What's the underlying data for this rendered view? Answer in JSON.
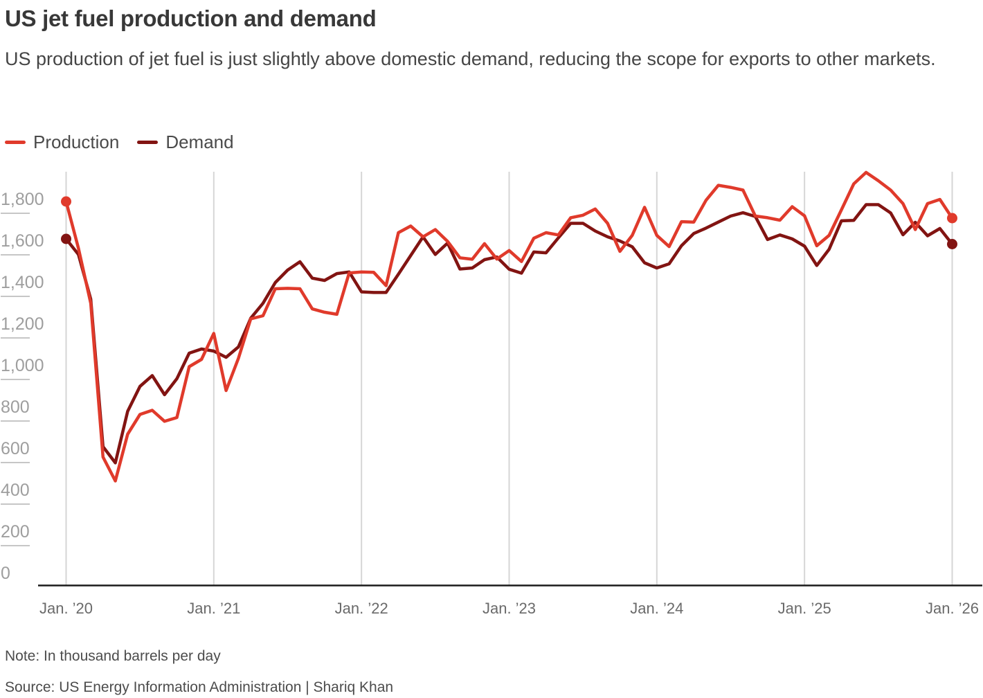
{
  "header": {
    "title": "US jet fuel production and demand",
    "subtitle": "US production of jet fuel is just slightly above domestic demand, reducing the scope for exports to other markets."
  },
  "footer": {
    "note": "Note: In thousand barrels per day",
    "source": "Source: US Energy Information Administration | Shariq Khan"
  },
  "colors": {
    "production": "#e03a2b",
    "demand": "#821412",
    "gridline": "#d6d6d6",
    "tick_dash": "#c6c6c6",
    "axis_line": "#1a1a1a",
    "y_label": "#9e9e9e",
    "x_label": "#6a6a6a"
  },
  "chart_data": {
    "type": "line",
    "title": "US jet fuel production and demand",
    "xlabel": "",
    "ylabel": "",
    "unit": "thousand barrels per day",
    "x_start": "Jan 2020",
    "x_end": "Jan 2026",
    "x_frequency": "monthly",
    "grid": "vertical-only",
    "legend_position": "top-left",
    "ylim": [
      -60,
      1935
    ],
    "x_tick_labels": [
      "Jan. ’20",
      "Jan. ’21",
      "Jan. ’22",
      "Jan. ’23",
      "Jan. ’24",
      "Jan. ’25",
      "Jan. ’26"
    ],
    "x_tick_month_indices": [
      0,
      12,
      24,
      36,
      48,
      60,
      72
    ],
    "y_ticks": [
      0,
      200,
      400,
      600,
      800,
      1000,
      1200,
      1400,
      1600,
      1800
    ],
    "y_tick_labels": [
      "0",
      "200",
      "400",
      "600",
      "800",
      "1,000",
      "1,200",
      "1,400",
      "1,600",
      "1,800"
    ],
    "series": [
      {
        "name": "Production",
        "color": "#e03a2b",
        "values": [
          1790,
          1565,
          1300,
          560,
          445,
          670,
          765,
          785,
          732,
          750,
          995,
          1030,
          1155,
          880,
          1035,
          1225,
          1240,
          1370,
          1372,
          1370,
          1273,
          1257,
          1247,
          1446,
          1451,
          1449,
          1385,
          1640,
          1672,
          1620,
          1655,
          1598,
          1519,
          1512,
          1587,
          1513,
          1554,
          1501,
          1613,
          1640,
          1629,
          1712,
          1724,
          1754,
          1685,
          1550,
          1627,
          1762,
          1627,
          1573,
          1693,
          1691,
          1796,
          1868,
          1858,
          1845,
          1720,
          1712,
          1700,
          1765,
          1721,
          1577,
          1627,
          1750,
          1875,
          1930,
          1890,
          1845,
          1780,
          1655,
          1780,
          1800,
          1710
        ]
      },
      {
        "name": "Demand",
        "color": "#821412",
        "values": [
          1610,
          1535,
          1320,
          610,
          532,
          780,
          900,
          952,
          860,
          937,
          1060,
          1080,
          1070,
          1040,
          1090,
          1228,
          1300,
          1400,
          1460,
          1500,
          1421,
          1410,
          1443,
          1451,
          1355,
          1352,
          1352,
          1440,
          1530,
          1620,
          1535,
          1590,
          1465,
          1470,
          1510,
          1523,
          1464,
          1445,
          1547,
          1543,
          1615,
          1685,
          1685,
          1648,
          1620,
          1600,
          1572,
          1495,
          1470,
          1490,
          1577,
          1636,
          1662,
          1691,
          1720,
          1736,
          1718,
          1607,
          1629,
          1610,
          1575,
          1482,
          1560,
          1697,
          1699,
          1775,
          1775,
          1735,
          1630,
          1690,
          1625,
          1660,
          1585
        ]
      }
    ]
  }
}
